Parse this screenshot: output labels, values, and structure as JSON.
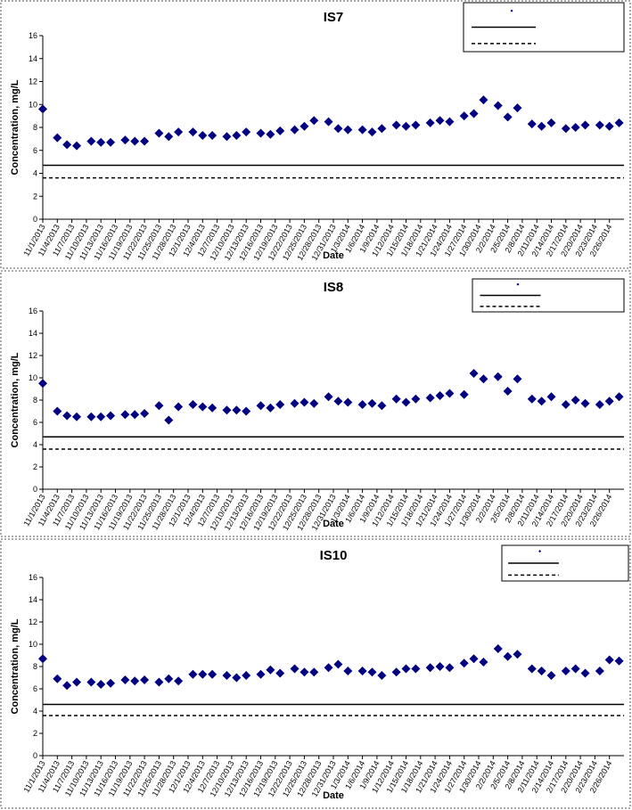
{
  "chart_data": [
    {
      "type": "scatter",
      "title": "IS7",
      "x_label": "Date",
      "y_label": "Concentration, mg/L",
      "xlim": [
        "2013-11-01",
        "2014-03-01"
      ],
      "xticks": [
        {
          "value": "2013-11-01",
          "label": "11/1/2013"
        },
        {
          "value": "2013-11-04",
          "label": "11/4/2013"
        },
        {
          "value": "2013-11-07",
          "label": "11/7/2013"
        },
        {
          "value": "2013-11-10",
          "label": "11/10/2013"
        },
        {
          "value": "2013-11-13",
          "label": "11/13/2013"
        },
        {
          "value": "2013-11-16",
          "label": "11/16/2013"
        },
        {
          "value": "2013-11-19",
          "label": "11/19/2013"
        },
        {
          "value": "2013-11-22",
          "label": "11/22/2013"
        },
        {
          "value": "2013-11-25",
          "label": "11/25/2013"
        },
        {
          "value": "2013-11-28",
          "label": "11/28/2013"
        },
        {
          "value": "2013-12-01",
          "label": "12/1/2013"
        },
        {
          "value": "2013-12-04",
          "label": "12/4/2013"
        },
        {
          "value": "2013-12-07",
          "label": "12/7/2013"
        },
        {
          "value": "2013-12-10",
          "label": "12/10/2013"
        },
        {
          "value": "2013-12-13",
          "label": "12/13/2013"
        },
        {
          "value": "2013-12-16",
          "label": "12/16/2013"
        },
        {
          "value": "2013-12-19",
          "label": "12/19/2013"
        },
        {
          "value": "2013-12-22",
          "label": "12/22/2013"
        },
        {
          "value": "2013-12-25",
          "label": "12/25/2013"
        },
        {
          "value": "2013-12-28",
          "label": "12/28/2013"
        },
        {
          "value": "2013-12-31",
          "label": "12/31/2013"
        },
        {
          "value": "2014-01-03",
          "label": "1/3/2014"
        },
        {
          "value": "2014-01-06",
          "label": "1/6/2014"
        },
        {
          "value": "2014-01-09",
          "label": "1/9/2014"
        },
        {
          "value": "2014-01-12",
          "label": "1/12/2014"
        },
        {
          "value": "2014-01-15",
          "label": "1/15/2014"
        },
        {
          "value": "2014-01-18",
          "label": "1/18/2014"
        },
        {
          "value": "2014-01-21",
          "label": "1/21/2014"
        },
        {
          "value": "2014-01-24",
          "label": "1/24/2014"
        },
        {
          "value": "2014-01-27",
          "label": "1/27/2014"
        },
        {
          "value": "2014-01-30",
          "label": "1/30/2014"
        },
        {
          "value": "2014-02-02",
          "label": "2/2/2014"
        },
        {
          "value": "2014-02-05",
          "label": "2/5/2014"
        },
        {
          "value": "2014-02-08",
          "label": "2/8/2014"
        },
        {
          "value": "2014-02-11",
          "label": "2/11/2014"
        },
        {
          "value": "2014-02-14",
          "label": "2/14/2014"
        },
        {
          "value": "2014-02-17",
          "label": "2/17/2014"
        },
        {
          "value": "2014-02-20",
          "label": "2/20/2014"
        },
        {
          "value": "2014-02-23",
          "label": "2/23/2014"
        },
        {
          "value": "2014-02-26",
          "label": "2/26/2014"
        }
      ],
      "ylim": [
        0,
        16
      ],
      "yticks": [
        0,
        2,
        4,
        6,
        8,
        10,
        12,
        14,
        16
      ],
      "x": [
        "2013-11-01",
        "2013-11-04",
        "2013-11-06",
        "2013-11-08",
        "2013-11-11",
        "2013-11-13",
        "2013-11-15",
        "2013-11-18",
        "2013-11-20",
        "2013-11-22",
        "2013-11-25",
        "2013-11-27",
        "2013-11-29",
        "2013-12-02",
        "2013-12-04",
        "2013-12-06",
        "2013-12-09",
        "2013-12-11",
        "2013-12-13",
        "2013-12-16",
        "2013-12-18",
        "2013-12-20",
        "2013-12-23",
        "2013-12-25",
        "2013-12-27",
        "2013-12-30",
        "2014-01-01",
        "2014-01-03",
        "2014-01-06",
        "2014-01-08",
        "2014-01-10",
        "2014-01-13",
        "2014-01-15",
        "2014-01-17",
        "2014-01-20",
        "2014-01-22",
        "2014-01-24",
        "2014-01-27",
        "2014-01-29",
        "2014-01-31",
        "2014-02-03",
        "2014-02-05",
        "2014-02-07",
        "2014-02-10",
        "2014-02-12",
        "2014-02-14",
        "2014-02-17",
        "2014-02-19",
        "2014-02-21",
        "2014-02-24",
        "2014-02-26",
        "2014-02-28"
      ],
      "series": [
        {
          "color": "#000080",
          "values": [
            9.6,
            7.1,
            6.5,
            6.4,
            6.8,
            6.7,
            6.7,
            6.9,
            6.8,
            6.8,
            7.5,
            7.2,
            7.6,
            7.6,
            7.3,
            7.3,
            7.2,
            7.3,
            7.6,
            7.5,
            7.4,
            7.7,
            7.8,
            8.1,
            8.6,
            8.5,
            7.9,
            7.8,
            7.8,
            7.6,
            7.9,
            8.2,
            8.1,
            8.2,
            8.4,
            8.6,
            8.5,
            9.0,
            9.2,
            10.4,
            9.9,
            8.9,
            9.7,
            8.3,
            8.1,
            8.4,
            7.9,
            8.0,
            8.2,
            8.2,
            8.1,
            8.4
          ]
        }
      ],
      "hlines": [
        {
          "value": 4.7,
          "style": "solid",
          "color": "#000000"
        },
        {
          "value": 3.6,
          "style": "dashed",
          "color": "#000000"
        }
      ]
    },
    {
      "type": "scatter",
      "title": "IS8",
      "x_label": "Date",
      "y_label": "Concentration, mg/L",
      "xlim": [
        "2013-11-01",
        "2014-03-01"
      ],
      "xticks": [
        {
          "value": "2013-11-01",
          "label": "11/1/2013"
        },
        {
          "value": "2013-11-04",
          "label": "11/4/2013"
        },
        {
          "value": "2013-11-07",
          "label": "11/7/2013"
        },
        {
          "value": "2013-11-10",
          "label": "11/10/2013"
        },
        {
          "value": "2013-11-13",
          "label": "11/13/2013"
        },
        {
          "value": "2013-11-16",
          "label": "11/16/2013"
        },
        {
          "value": "2013-11-19",
          "label": "11/19/2013"
        },
        {
          "value": "2013-11-22",
          "label": "11/22/2013"
        },
        {
          "value": "2013-11-25",
          "label": "11/25/2013"
        },
        {
          "value": "2013-11-28",
          "label": "11/28/2013"
        },
        {
          "value": "2013-12-01",
          "label": "12/1/2013"
        },
        {
          "value": "2013-12-04",
          "label": "12/4/2013"
        },
        {
          "value": "2013-12-07",
          "label": "12/7/2013"
        },
        {
          "value": "2013-12-10",
          "label": "12/10/2013"
        },
        {
          "value": "2013-12-13",
          "label": "12/13/2013"
        },
        {
          "value": "2013-12-16",
          "label": "12/16/2013"
        },
        {
          "value": "2013-12-19",
          "label": "12/19/2013"
        },
        {
          "value": "2013-12-22",
          "label": "12/22/2013"
        },
        {
          "value": "2013-12-25",
          "label": "12/25/2013"
        },
        {
          "value": "2013-12-28",
          "label": "12/28/2013"
        },
        {
          "value": "2013-12-31",
          "label": "12/31/2013"
        },
        {
          "value": "2014-01-03",
          "label": "1/3/2014"
        },
        {
          "value": "2014-01-06",
          "label": "1/6/2014"
        },
        {
          "value": "2014-01-09",
          "label": "1/9/2014"
        },
        {
          "value": "2014-01-12",
          "label": "1/12/2014"
        },
        {
          "value": "2014-01-15",
          "label": "1/15/2014"
        },
        {
          "value": "2014-01-18",
          "label": "1/18/2014"
        },
        {
          "value": "2014-01-21",
          "label": "1/21/2014"
        },
        {
          "value": "2014-01-24",
          "label": "1/24/2014"
        },
        {
          "value": "2014-01-27",
          "label": "1/27/2014"
        },
        {
          "value": "2014-01-30",
          "label": "1/30/2014"
        },
        {
          "value": "2014-02-02",
          "label": "2/2/2014"
        },
        {
          "value": "2014-02-05",
          "label": "2/5/2014"
        },
        {
          "value": "2014-02-08",
          "label": "2/8/2014"
        },
        {
          "value": "2014-02-11",
          "label": "2/11/2014"
        },
        {
          "value": "2014-02-14",
          "label": "2/14/2014"
        },
        {
          "value": "2014-02-17",
          "label": "2/17/2014"
        },
        {
          "value": "2014-02-20",
          "label": "2/20/2014"
        },
        {
          "value": "2014-02-23",
          "label": "2/23/2014"
        },
        {
          "value": "2014-02-26",
          "label": "2/26/2014"
        }
      ],
      "ylim": [
        0,
        16
      ],
      "yticks": [
        0,
        2,
        4,
        6,
        8,
        10,
        12,
        14,
        16
      ],
      "x": [
        "2013-11-01",
        "2013-11-04",
        "2013-11-06",
        "2013-11-08",
        "2013-11-11",
        "2013-11-13",
        "2013-11-15",
        "2013-11-18",
        "2013-11-20",
        "2013-11-22",
        "2013-11-25",
        "2013-11-27",
        "2013-11-29",
        "2013-12-02",
        "2013-12-04",
        "2013-12-06",
        "2013-12-09",
        "2013-12-11",
        "2013-12-13",
        "2013-12-16",
        "2013-12-18",
        "2013-12-20",
        "2013-12-23",
        "2013-12-25",
        "2013-12-27",
        "2013-12-30",
        "2014-01-01",
        "2014-01-03",
        "2014-01-06",
        "2014-01-08",
        "2014-01-10",
        "2014-01-13",
        "2014-01-15",
        "2014-01-17",
        "2014-01-20",
        "2014-01-22",
        "2014-01-24",
        "2014-01-27",
        "2014-01-29",
        "2014-01-31",
        "2014-02-03",
        "2014-02-05",
        "2014-02-07",
        "2014-02-10",
        "2014-02-12",
        "2014-02-14",
        "2014-02-17",
        "2014-02-19",
        "2014-02-21",
        "2014-02-24",
        "2014-02-26",
        "2014-02-28"
      ],
      "series": [
        {
          "color": "#000080",
          "values": [
            9.5,
            7.0,
            6.6,
            6.5,
            6.5,
            6.5,
            6.6,
            6.7,
            6.7,
            6.8,
            7.5,
            6.2,
            7.4,
            7.6,
            7.4,
            7.3,
            7.1,
            7.1,
            7.0,
            7.5,
            7.3,
            7.6,
            7.7,
            7.8,
            7.7,
            8.3,
            7.9,
            7.8,
            7.6,
            7.7,
            7.5,
            8.1,
            7.8,
            8.1,
            8.2,
            8.4,
            8.6,
            8.5,
            10.4,
            9.9,
            10.1,
            8.8,
            9.9,
            8.1,
            7.9,
            8.3,
            7.6,
            8.0,
            7.7,
            7.6,
            7.9,
            8.3
          ]
        }
      ],
      "hlines": [
        {
          "value": 4.7,
          "style": "solid",
          "color": "#000000"
        },
        {
          "value": 3.6,
          "style": "dashed",
          "color": "#000000"
        }
      ]
    },
    {
      "type": "scatter",
      "title": "IS10",
      "x_label": "Date",
      "y_label": "Concentration, mg/L",
      "xlim": [
        "2013-11-01",
        "2014-03-01"
      ],
      "xticks": [
        {
          "value": "2013-11-01",
          "label": "11/1/2013"
        },
        {
          "value": "2013-11-04",
          "label": "11/4/2013"
        },
        {
          "value": "2013-11-07",
          "label": "11/7/2013"
        },
        {
          "value": "2013-11-10",
          "label": "11/10/2013"
        },
        {
          "value": "2013-11-13",
          "label": "11/13/2013"
        },
        {
          "value": "2013-11-16",
          "label": "11/16/2013"
        },
        {
          "value": "2013-11-19",
          "label": "11/19/2013"
        },
        {
          "value": "2013-11-22",
          "label": "11/22/2013"
        },
        {
          "value": "2013-11-25",
          "label": "11/25/2013"
        },
        {
          "value": "2013-11-28",
          "label": "11/28/2013"
        },
        {
          "value": "2013-12-01",
          "label": "12/1/2013"
        },
        {
          "value": "2013-12-04",
          "label": "12/4/2013"
        },
        {
          "value": "2013-12-07",
          "label": "12/7/2013"
        },
        {
          "value": "2013-12-10",
          "label": "12/10/2013"
        },
        {
          "value": "2013-12-13",
          "label": "12/13/2013"
        },
        {
          "value": "2013-12-16",
          "label": "12/16/2013"
        },
        {
          "value": "2013-12-19",
          "label": "12/19/2013"
        },
        {
          "value": "2013-12-22",
          "label": "12/22/2013"
        },
        {
          "value": "2013-12-25",
          "label": "12/25/2013"
        },
        {
          "value": "2013-12-28",
          "label": "12/28/2013"
        },
        {
          "value": "2013-12-31",
          "label": "12/31/2013"
        },
        {
          "value": "2014-01-03",
          "label": "1/3/2014"
        },
        {
          "value": "2014-01-06",
          "label": "1/6/2014"
        },
        {
          "value": "2014-01-09",
          "label": "1/9/2014"
        },
        {
          "value": "2014-01-12",
          "label": "1/12/2014"
        },
        {
          "value": "2014-01-15",
          "label": "1/15/2014"
        },
        {
          "value": "2014-01-18",
          "label": "1/18/2014"
        },
        {
          "value": "2014-01-21",
          "label": "1/21/2014"
        },
        {
          "value": "2014-01-24",
          "label": "1/24/2014"
        },
        {
          "value": "2014-01-27",
          "label": "1/27/2014"
        },
        {
          "value": "2014-01-30",
          "label": "1/30/2014"
        },
        {
          "value": "2014-02-02",
          "label": "2/2/2014"
        },
        {
          "value": "2014-02-05",
          "label": "2/5/2014"
        },
        {
          "value": "2014-02-08",
          "label": "2/8/2014"
        },
        {
          "value": "2014-02-11",
          "label": "2/11/2014"
        },
        {
          "value": "2014-02-14",
          "label": "2/14/2014"
        },
        {
          "value": "2014-02-17",
          "label": "2/17/2014"
        },
        {
          "value": "2014-02-20",
          "label": "2/20/2014"
        },
        {
          "value": "2014-02-23",
          "label": "2/23/2014"
        },
        {
          "value": "2014-02-26",
          "label": "2/26/2014"
        }
      ],
      "ylim": [
        0,
        16
      ],
      "yticks": [
        0,
        2,
        4,
        6,
        8,
        10,
        12,
        14,
        16
      ],
      "x": [
        "2013-11-01",
        "2013-11-04",
        "2013-11-06",
        "2013-11-08",
        "2013-11-11",
        "2013-11-13",
        "2013-11-15",
        "2013-11-18",
        "2013-11-20",
        "2013-11-22",
        "2013-11-25",
        "2013-11-27",
        "2013-11-29",
        "2013-12-02",
        "2013-12-04",
        "2013-12-06",
        "2013-12-09",
        "2013-12-11",
        "2013-12-13",
        "2013-12-16",
        "2013-12-18",
        "2013-12-20",
        "2013-12-23",
        "2013-12-25",
        "2013-12-27",
        "2013-12-30",
        "2014-01-01",
        "2014-01-03",
        "2014-01-06",
        "2014-01-08",
        "2014-01-10",
        "2014-01-13",
        "2014-01-15",
        "2014-01-17",
        "2014-01-20",
        "2014-01-22",
        "2014-01-24",
        "2014-01-27",
        "2014-01-29",
        "2014-01-31",
        "2014-02-03",
        "2014-02-05",
        "2014-02-07",
        "2014-02-10",
        "2014-02-12",
        "2014-02-14",
        "2014-02-17",
        "2014-02-19",
        "2014-02-21",
        "2014-02-24",
        "2014-02-26",
        "2014-02-28"
      ],
      "series": [
        {
          "color": "#000080",
          "values": [
            8.7,
            6.9,
            6.3,
            6.6,
            6.6,
            6.4,
            6.5,
            6.8,
            6.7,
            6.8,
            6.6,
            6.9,
            6.7,
            7.3,
            7.3,
            7.3,
            7.2,
            7.0,
            7.2,
            7.3,
            7.7,
            7.4,
            7.8,
            7.5,
            7.5,
            7.9,
            8.2,
            7.6,
            7.6,
            7.5,
            7.2,
            7.5,
            7.8,
            7.8,
            7.9,
            8.0,
            7.9,
            8.3,
            8.7,
            8.4,
            9.6,
            8.9,
            9.1,
            7.8,
            7.6,
            7.2,
            7.6,
            7.8,
            7.4,
            7.6,
            8.6,
            8.5
          ]
        }
      ],
      "hlines": [
        {
          "value": 4.6,
          "style": "solid",
          "color": "#000000"
        },
        {
          "value": 3.6,
          "style": "dashed",
          "color": "#000000"
        }
      ]
    }
  ]
}
